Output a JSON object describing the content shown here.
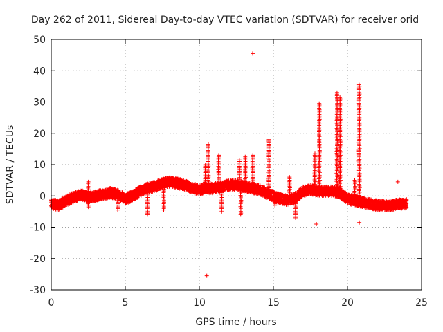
{
  "chart_data": {
    "type": "scatter",
    "title": "Day 262 of 2011, Sidereal Day-to-day VTEC variation (SDTVAR) for receiver orid",
    "xlabel": "GPS time / hours",
    "ylabel": "SDTVAR / TECUs",
    "xlim": [
      0,
      25
    ],
    "ylim": [
      -30,
      50
    ],
    "xticks": [
      0,
      5,
      10,
      15,
      20,
      25
    ],
    "yticks": [
      -30,
      -20,
      -10,
      0,
      10,
      20,
      30,
      40,
      50
    ],
    "grid": true,
    "marker": "+",
    "color": "#ff0000",
    "series": [
      {
        "name": "SDTVAR",
        "baseline": [
          [
            0.0,
            -2.5
          ],
          [
            0.5,
            -3.0
          ],
          [
            1.0,
            -1.5
          ],
          [
            1.5,
            -0.5
          ],
          [
            2.0,
            0.5
          ],
          [
            2.5,
            -0.5
          ],
          [
            3.0,
            0.0
          ],
          [
            3.5,
            0.5
          ],
          [
            4.0,
            1.0
          ],
          [
            4.5,
            0.5
          ],
          [
            5.0,
            -1.0
          ],
          [
            5.5,
            0.0
          ],
          [
            6.0,
            1.5
          ],
          [
            6.5,
            2.5
          ],
          [
            7.0,
            3.0
          ],
          [
            7.5,
            4.0
          ],
          [
            8.0,
            4.5
          ],
          [
            8.5,
            4.0
          ],
          [
            9.0,
            3.5
          ],
          [
            9.5,
            2.5
          ],
          [
            10.0,
            2.0
          ],
          [
            10.5,
            2.5
          ],
          [
            11.0,
            2.5
          ],
          [
            11.5,
            3.0
          ],
          [
            12.0,
            3.5
          ],
          [
            12.5,
            3.5
          ],
          [
            13.0,
            3.0
          ],
          [
            13.5,
            2.5
          ],
          [
            14.0,
            2.0
          ],
          [
            14.5,
            1.0
          ],
          [
            15.0,
            0.0
          ],
          [
            15.5,
            -1.0
          ],
          [
            16.0,
            -1.5
          ],
          [
            16.5,
            -0.5
          ],
          [
            17.0,
            1.5
          ],
          [
            17.5,
            2.0
          ],
          [
            18.0,
            1.5
          ],
          [
            18.5,
            1.5
          ],
          [
            19.0,
            1.5
          ],
          [
            19.5,
            1.0
          ],
          [
            20.0,
            -1.0
          ],
          [
            20.5,
            -1.5
          ],
          [
            21.0,
            -2.0
          ],
          [
            21.5,
            -2.5
          ],
          [
            22.0,
            -3.0
          ],
          [
            22.5,
            -3.0
          ],
          [
            23.0,
            -3.0
          ],
          [
            23.5,
            -2.5
          ],
          [
            24.0,
            -2.5
          ]
        ],
        "spikes": [
          [
            2.5,
            4.5
          ],
          [
            2.5,
            -3.5
          ],
          [
            4.5,
            -4.5
          ],
          [
            6.5,
            -6.0
          ],
          [
            7.6,
            -4.5
          ],
          [
            10.6,
            16.5
          ],
          [
            10.4,
            10.0
          ],
          [
            11.3,
            13.0
          ],
          [
            11.5,
            -5.0
          ],
          [
            12.7,
            11.5
          ],
          [
            12.8,
            -6.0
          ],
          [
            13.1,
            12.5
          ],
          [
            13.6,
            13.0
          ],
          [
            14.7,
            18.0
          ],
          [
            15.1,
            -3.0
          ],
          [
            16.1,
            6.0
          ],
          [
            16.5,
            -7.0
          ],
          [
            17.8,
            13.5
          ],
          [
            18.1,
            29.5
          ],
          [
            19.3,
            33.0
          ],
          [
            19.5,
            31.5
          ],
          [
            20.8,
            35.5
          ],
          [
            20.5,
            5.0
          ]
        ],
        "outliers": [
          [
            13.6,
            45.5
          ],
          [
            10.5,
            -25.5
          ],
          [
            17.9,
            -9.0
          ],
          [
            20.8,
            -8.5
          ],
          [
            23.4,
            4.5
          ]
        ]
      }
    ]
  }
}
